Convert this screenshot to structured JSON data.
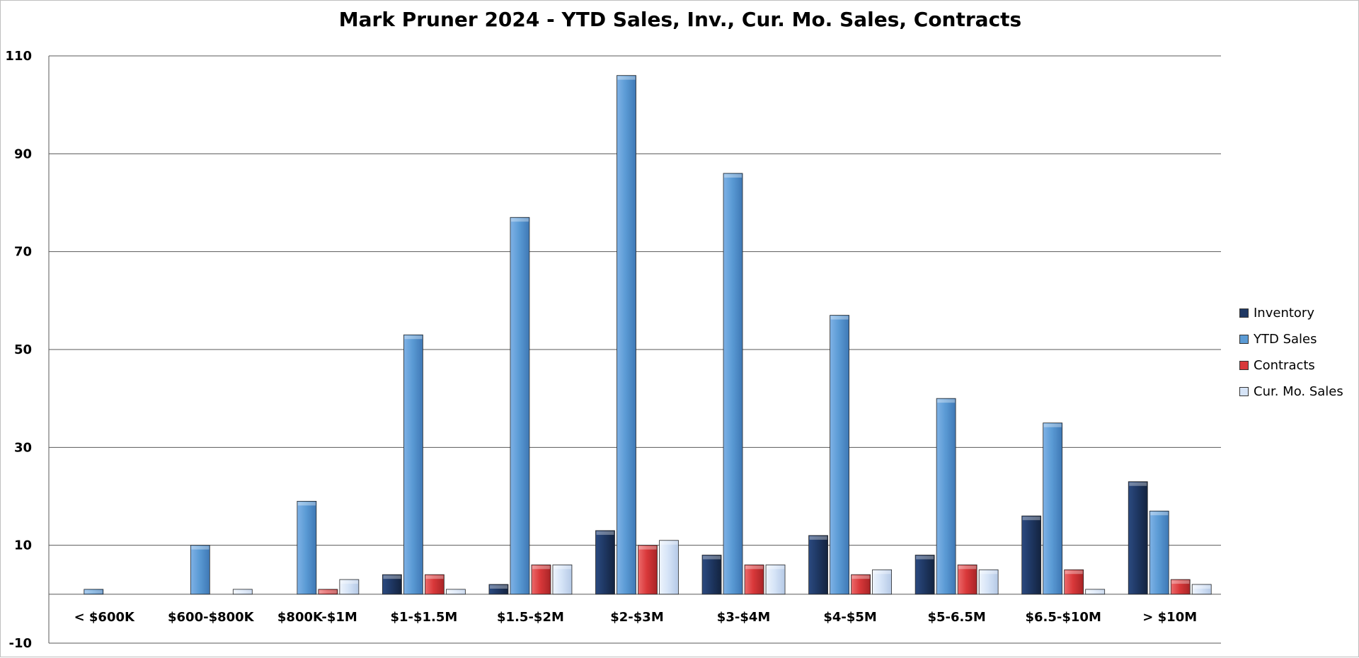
{
  "chart_data": {
    "type": "bar",
    "title": "Mark Pruner 2024 - YTD Sales, Inv., Cur. Mo. Sales, Contracts",
    "xlabel": "",
    "ylabel": "",
    "ylim": [
      -10,
      110
    ],
    "yticks": [
      -10,
      10,
      30,
      50,
      70,
      90,
      110
    ],
    "grid": true,
    "legend_position": "right",
    "categories": [
      "< $600K",
      "$600-$800K",
      "$800K-$1M",
      "$1-$1.5M",
      "$1.5-$2M",
      "$2-$3M",
      "$3-$4M",
      "$4-$5M",
      "$5-6.5M",
      "$6.5-$10M",
      "> $10M"
    ],
    "series": [
      {
        "name": "Inventory",
        "color": "#1f3864",
        "values": [
          0,
          0,
          0,
          4,
          2,
          13,
          8,
          12,
          8,
          16,
          23
        ]
      },
      {
        "name": "YTD Sales",
        "color": "#5b9bd5",
        "values": [
          1,
          10,
          19,
          53,
          77,
          106,
          86,
          57,
          40,
          35,
          17
        ]
      },
      {
        "name": "Contracts",
        "color": "#d9383a",
        "values": [
          0,
          0,
          1,
          4,
          6,
          10,
          6,
          4,
          6,
          5,
          3
        ]
      },
      {
        "name": "Cur. Mo. Sales",
        "color": "#d6e4f7",
        "values": [
          0,
          1,
          3,
          1,
          6,
          11,
          6,
          5,
          5,
          1,
          2
        ]
      }
    ]
  }
}
